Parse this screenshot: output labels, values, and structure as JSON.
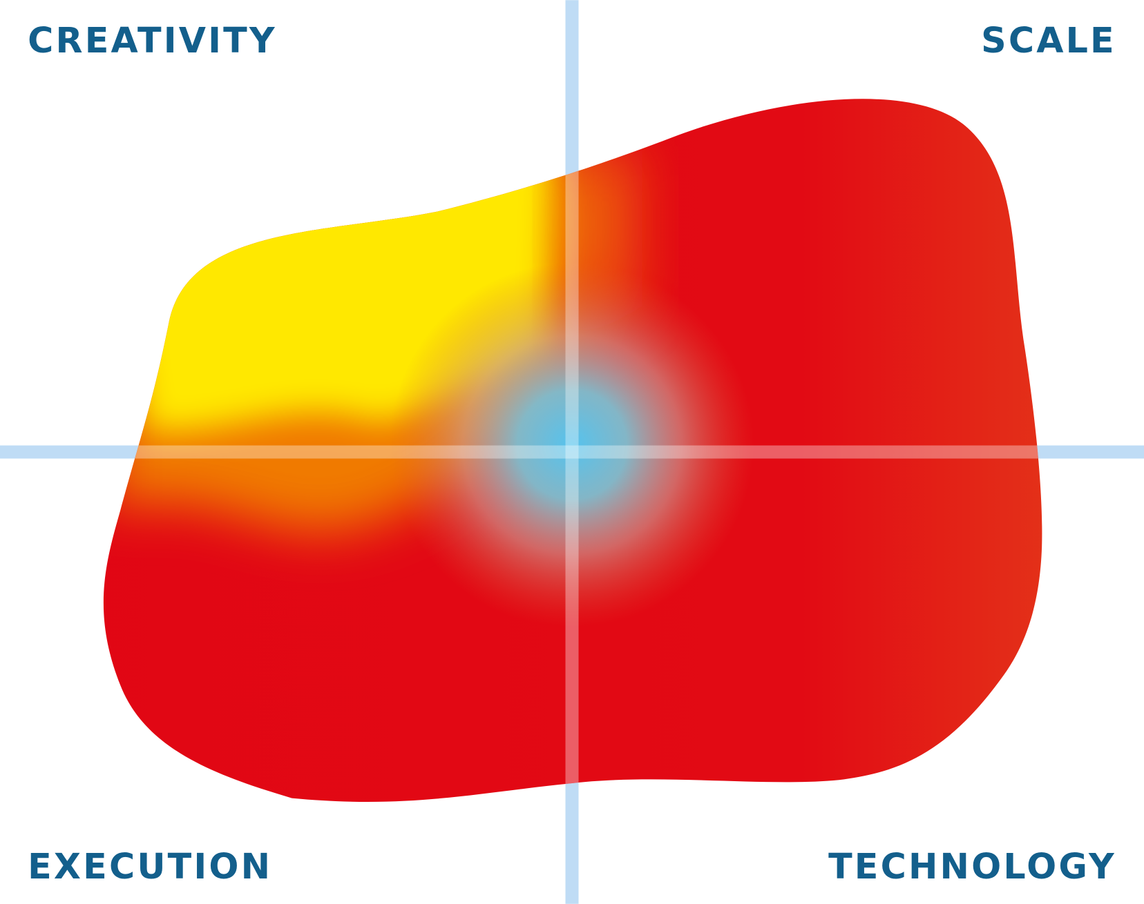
{
  "quadrants": {
    "top_left": "CREATIVITY",
    "top_right": "SCALE",
    "bottom_left": "EXECUTION",
    "bottom_right": "TECHNOLOGY"
  }
}
